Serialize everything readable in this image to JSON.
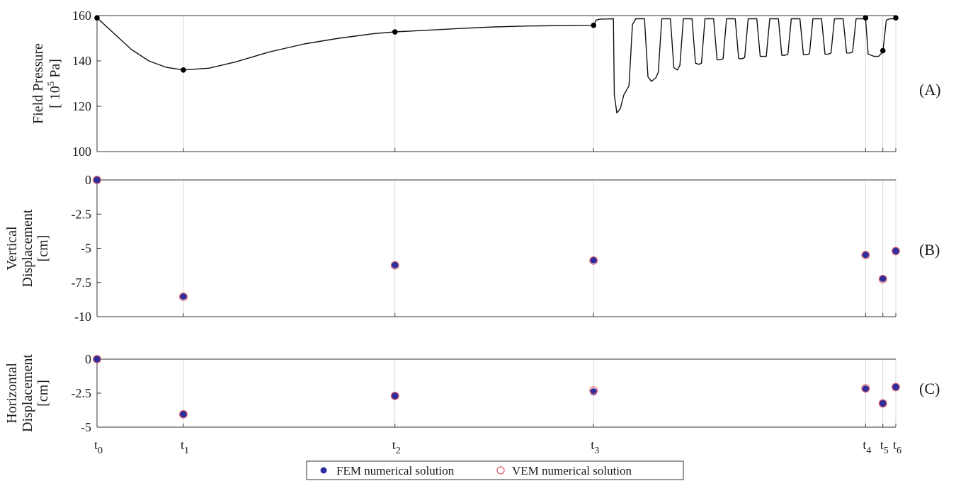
{
  "colors": {
    "fem": "#2e2e9e",
    "vem": "#e0606a",
    "pressure": "#111111",
    "gridline": "#d0d0d0",
    "axis": "#333333"
  },
  "chart_data": [
    {
      "type": "line",
      "panel_label": "(A)",
      "ylabel": [
        "Field Pressure",
        "[ 10",
        "5",
        " Pa]"
      ],
      "ylim": [
        100,
        160
      ],
      "yticks": [
        100,
        120,
        140,
        160
      ],
      "x_time_labels": [
        "t0",
        "t1",
        "t2",
        "t3",
        "t4",
        "t5",
        "t6"
      ],
      "x_time_positions": [
        0,
        1,
        3.45,
        5.75,
        8.9,
        9.1,
        9.25
      ],
      "xlim": [
        0,
        9.25
      ],
      "series": [
        {
          "x": [
            0,
            0.2,
            0.4,
            0.6,
            0.8,
            1,
            1.3,
            1.6,
            2,
            2.4,
            2.8,
            3.2,
            3.45,
            3.8,
            4.2,
            4.6,
            5,
            5.4,
            5.75,
            5.78,
            5.82,
            5.9,
            5.98,
            5.99,
            6.02,
            6.06,
            6.1,
            6.16,
            6.2,
            6.24,
            6.3,
            6.34,
            6.38,
            6.42,
            6.47,
            6.5,
            6.54,
            6.6,
            6.64,
            6.68,
            6.72,
            6.75,
            6.79,
            6.85,
            6.89,
            6.93,
            6.97,
            7.0,
            7.04,
            7.1,
            7.14,
            7.18,
            7.22,
            7.25,
            7.29,
            7.35,
            7.39,
            7.43,
            7.47,
            7.5,
            7.54,
            7.6,
            7.64,
            7.68,
            7.72,
            7.75,
            7.79,
            7.85,
            7.89,
            7.93,
            7.97,
            8.0,
            8.04,
            8.1,
            8.14,
            8.18,
            8.22,
            8.25,
            8.29,
            8.35,
            8.39,
            8.43,
            8.47,
            8.5,
            8.54,
            8.6,
            8.64,
            8.68,
            8.72,
            8.75,
            8.79,
            8.85,
            8.89,
            8.9,
            8.93,
            9.0,
            9.05,
            9.1,
            9.14,
            9.18,
            9.22,
            9.25
          ],
          "y": [
            159,
            152,
            145,
            140,
            137.2,
            136,
            136.8,
            139.5,
            144,
            147.5,
            150,
            152,
            152.8,
            153.5,
            154.3,
            155,
            155.4,
            155.6,
            155.7,
            158,
            158.4,
            158.5,
            158.6,
            125,
            117,
            119,
            125,
            129,
            156,
            158.6,
            158.6,
            158.6,
            133,
            131,
            132.5,
            135,
            158.6,
            158.6,
            158.6,
            137,
            136,
            138,
            158.6,
            158.6,
            158.6,
            139,
            138.5,
            139,
            158.6,
            158.6,
            158.6,
            140.5,
            140.5,
            141,
            158.6,
            158.6,
            158.6,
            141,
            141,
            141.5,
            158.6,
            158.6,
            158.6,
            142,
            142,
            142,
            158.6,
            158.6,
            158.6,
            142.5,
            142.5,
            143,
            158.6,
            158.6,
            158.6,
            142.8,
            142.8,
            143.2,
            158.6,
            158.6,
            158.6,
            143,
            143,
            143.5,
            158.6,
            158.6,
            158.6,
            143.5,
            143.5,
            144,
            158.6,
            158.6,
            158.6,
            158.6,
            143,
            142,
            142,
            144,
            158,
            158.6,
            158.6,
            158.6
          ]
        }
      ],
      "markers": {
        "x": [
          0,
          1,
          3.45,
          5.75,
          8.9,
          9.1,
          9.25
        ],
        "y": [
          159,
          136,
          152.8,
          155.7,
          159,
          144.5,
          159
        ]
      }
    },
    {
      "type": "scatter",
      "panel_label": "(B)",
      "ylabel": [
        "Vertical",
        "Displacement",
        "[cm]"
      ],
      "ylim": [
        -10,
        0
      ],
      "yticks": [
        0,
        -2.5,
        -5,
        -7.5,
        -10
      ],
      "ytick_labels": [
        "0",
        "-2.5",
        "-5",
        "-7.5",
        "-10"
      ],
      "series": [
        {
          "name": "FEM numerical solution",
          "x": [
            0,
            1,
            3.45,
            5.75,
            8.9,
            9.1,
            9.25
          ],
          "y": [
            0,
            -8.5,
            -6.2,
            -5.85,
            -5.45,
            -7.2,
            -5.2
          ]
        },
        {
          "name": "VEM numerical solution",
          "x": [
            0,
            1,
            3.45,
            5.75,
            8.9,
            9.1,
            9.25
          ],
          "y": [
            0,
            -8.55,
            -6.25,
            -5.9,
            -5.5,
            -7.25,
            -5.2
          ]
        }
      ]
    },
    {
      "type": "scatter",
      "panel_label": "(C)",
      "ylabel": [
        "Horizontal",
        "Displacement",
        "[cm]"
      ],
      "ylim": [
        -5,
        0
      ],
      "yticks": [
        0,
        -2.5,
        -5
      ],
      "ytick_labels": [
        "0",
        "-2.5",
        "-5"
      ],
      "series": [
        {
          "name": "FEM numerical solution",
          "x": [
            0,
            1,
            3.45,
            5.75,
            8.9,
            9.1,
            9.25
          ],
          "y": [
            0,
            -4.05,
            -2.7,
            -2.4,
            -2.2,
            -3.25,
            -2.05
          ]
        },
        {
          "name": "VEM numerical solution",
          "x": [
            0,
            1,
            3.45,
            5.75,
            8.9,
            9.1,
            9.25
          ],
          "y": [
            0,
            -4.05,
            -2.7,
            -2.3,
            -2.15,
            -3.25,
            -2.05
          ]
        }
      ]
    }
  ],
  "legend": {
    "fem_label": "FEM numerical solution",
    "vem_label": "VEM numerical solution"
  }
}
